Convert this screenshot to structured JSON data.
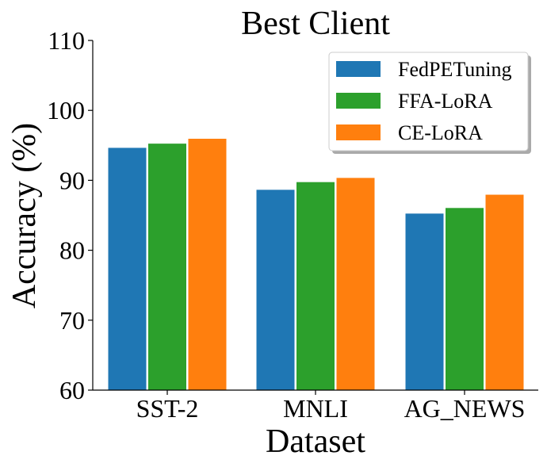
{
  "chart_data": {
    "type": "bar",
    "title": "Best Client",
    "xlabel": "Dataset",
    "ylabel": "Accuracy (%)",
    "categories": [
      "SST-2",
      "MNLI",
      "AG_NEWS"
    ],
    "ylim": [
      60,
      110
    ],
    "yticks": [
      60,
      70,
      80,
      90,
      100,
      110
    ],
    "grid": false,
    "legend_position": "top-right",
    "series": [
      {
        "name": "FedPETuning",
        "color": "#1f77b4",
        "values": [
          94.7,
          88.7,
          85.3
        ]
      },
      {
        "name": "FFA-LoRA",
        "color": "#2ca02c",
        "values": [
          95.3,
          89.8,
          86.1
        ]
      },
      {
        "name": "CE-LoRA",
        "color": "#ff7f0e",
        "values": [
          96.0,
          90.4,
          88.0
        ]
      }
    ]
  }
}
